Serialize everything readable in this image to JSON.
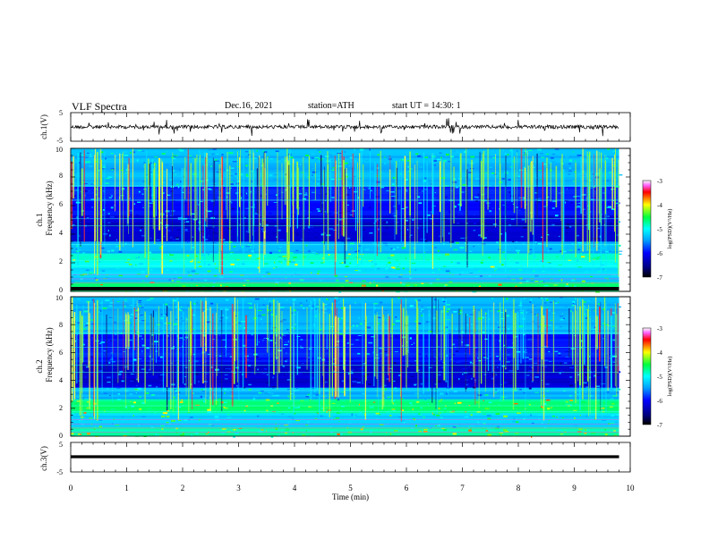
{
  "header": {
    "title": "VLF Spectra",
    "date": "Dec.16, 2021",
    "station": "station=ATH",
    "start": "start UT =   14:30: 1"
  },
  "chart_data": [
    {
      "type": "line",
      "ylabel": "ch.1(V)",
      "ylim": [
        -5,
        5
      ],
      "yticks": [
        "5",
        "-5"
      ],
      "xlim": [
        0,
        10
      ]
    },
    {
      "type": "heatmap",
      "ylabel_lines": [
        "ch.1",
        "Frequency (kHz)"
      ],
      "ylim": [
        0,
        10
      ],
      "yticks": [
        "0",
        "2",
        "4",
        "6",
        "8",
        "10"
      ],
      "xlim": [
        0,
        10
      ],
      "colorbar": {
        "label": "log(PSD)(V²/Hz)",
        "range": [
          -7,
          -3
        ],
        "ticks": [
          "-3",
          "-4",
          "-5",
          "-6",
          "-7"
        ]
      }
    },
    {
      "type": "heatmap",
      "ylabel_lines": [
        "ch.2",
        "Frequency (kHz)"
      ],
      "ylim": [
        0,
        10
      ],
      "yticks": [
        "0",
        "2",
        "4",
        "6",
        "8",
        "10"
      ],
      "xlim": [
        0,
        10
      ],
      "colorbar": {
        "label": "log(PSD)(V²/Hz)",
        "range": [
          -7,
          -3
        ],
        "ticks": [
          "-3",
          "-4",
          "-5",
          "-6",
          "-7"
        ]
      }
    },
    {
      "type": "line",
      "ylabel": "ch.3(V)",
      "ylim": [
        -5,
        5
      ],
      "yticks": [
        "5",
        "-5"
      ],
      "xlim": [
        0,
        10
      ],
      "xlabel": "Time (min)",
      "xticks": [
        "0",
        "1",
        "2",
        "3",
        "4",
        "5",
        "6",
        "7",
        "8",
        "9",
        "10"
      ]
    }
  ]
}
